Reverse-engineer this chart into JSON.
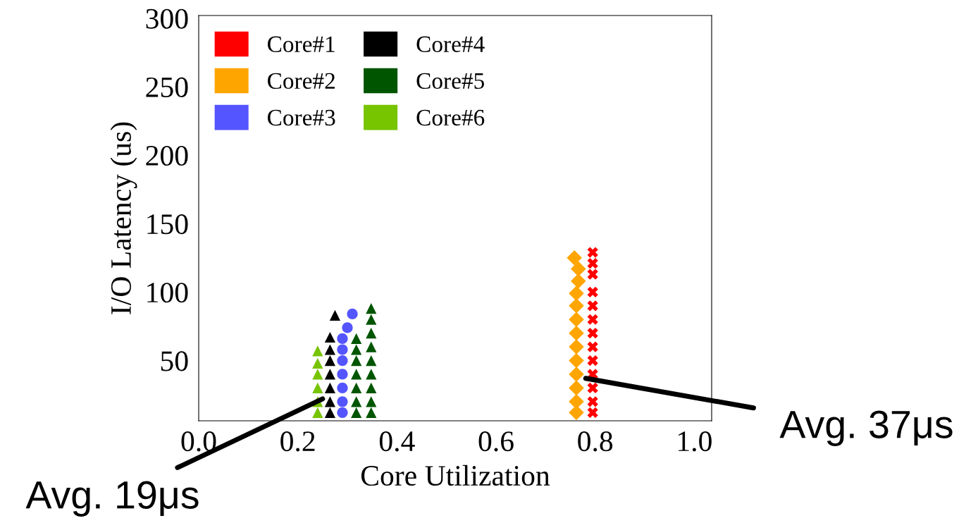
{
  "chart_data": {
    "type": "scatter",
    "xlabel": "Core Utilization",
    "ylabel": "I/O Latency (us)",
    "xlim": [
      0,
      1.035
    ],
    "xticks": [
      {
        "value": 0,
        "label": "0.0"
      },
      {
        "value": 0.2,
        "label": "0.2"
      },
      {
        "value": 0.4,
        "label": "0.4"
      },
      {
        "value": 0.6,
        "label": "0.6"
      },
      {
        "value": 0.8,
        "label": "0.8"
      },
      {
        "value": 1,
        "label": "1.0"
      }
    ],
    "ylim": [
      6,
      302
    ],
    "yticks": [
      50,
      100,
      150,
      200,
      250,
      300
    ],
    "grid": false,
    "legend": "top left",
    "series": [
      {
        "name": "Core#1",
        "color": "#ff0000",
        "marker": "cross",
        "x": [
          0.795,
          0.795,
          0.795,
          0.795,
          0.795,
          0.795,
          0.795,
          0.795,
          0.795,
          0.795,
          0.795,
          0.795,
          0.795
        ],
        "values": [
          12,
          20,
          30,
          40,
          50,
          60,
          70,
          80,
          90,
          100,
          113,
          121,
          129
        ]
      },
      {
        "name": "Core#2",
        "color": "#ffa500",
        "marker": "diamond",
        "x": [
          0.762,
          0.762,
          0.762,
          0.762,
          0.762,
          0.762,
          0.762,
          0.762,
          0.762,
          0.762,
          0.766,
          0.766,
          0.758
        ],
        "values": [
          12,
          20,
          30,
          40,
          50,
          60,
          70,
          80,
          90,
          99,
          108,
          117,
          125
        ]
      },
      {
        "name": "Core#3",
        "color": "#5555ff",
        "marker": "circle",
        "x": [
          0.29,
          0.29,
          0.29,
          0.29,
          0.29,
          0.29,
          0.29,
          0.3,
          0.31
        ],
        "values": [
          12,
          20,
          30,
          40,
          50,
          58,
          66,
          74,
          84
        ]
      },
      {
        "name": "Core#4",
        "color": "#000000",
        "marker": "triangle",
        "x": [
          0.265,
          0.265,
          0.265,
          0.265,
          0.265,
          0.265,
          0.265,
          0.275
        ],
        "values": [
          12,
          20,
          30,
          40,
          50,
          58,
          67,
          83
        ]
      },
      {
        "name": "Core#5",
        "color": "#005500",
        "marker": "triangle",
        "x": [
          0.318,
          0.318,
          0.318,
          0.318,
          0.318,
          0.318,
          0.318,
          0.348,
          0.348,
          0.348,
          0.348,
          0.348,
          0.348,
          0.348,
          0.348,
          0.348
        ],
        "values": [
          12,
          20,
          30,
          40,
          50,
          58,
          66,
          12,
          20,
          30,
          40,
          50,
          60,
          70,
          80,
          88
        ]
      },
      {
        "name": "Core#6",
        "color": "#77c400",
        "marker": "triangle",
        "x": [
          0.24,
          0.24,
          0.24,
          0.24,
          0.24,
          0.24
        ],
        "values": [
          12,
          20,
          30,
          40,
          48,
          57
        ]
      }
    ],
    "annotations": [
      {
        "text": "Avg. 37μs",
        "x": 0.781,
        "y": 37
      },
      {
        "text": "Avg. 19μs",
        "x": 0.25,
        "y": 22
      }
    ]
  }
}
